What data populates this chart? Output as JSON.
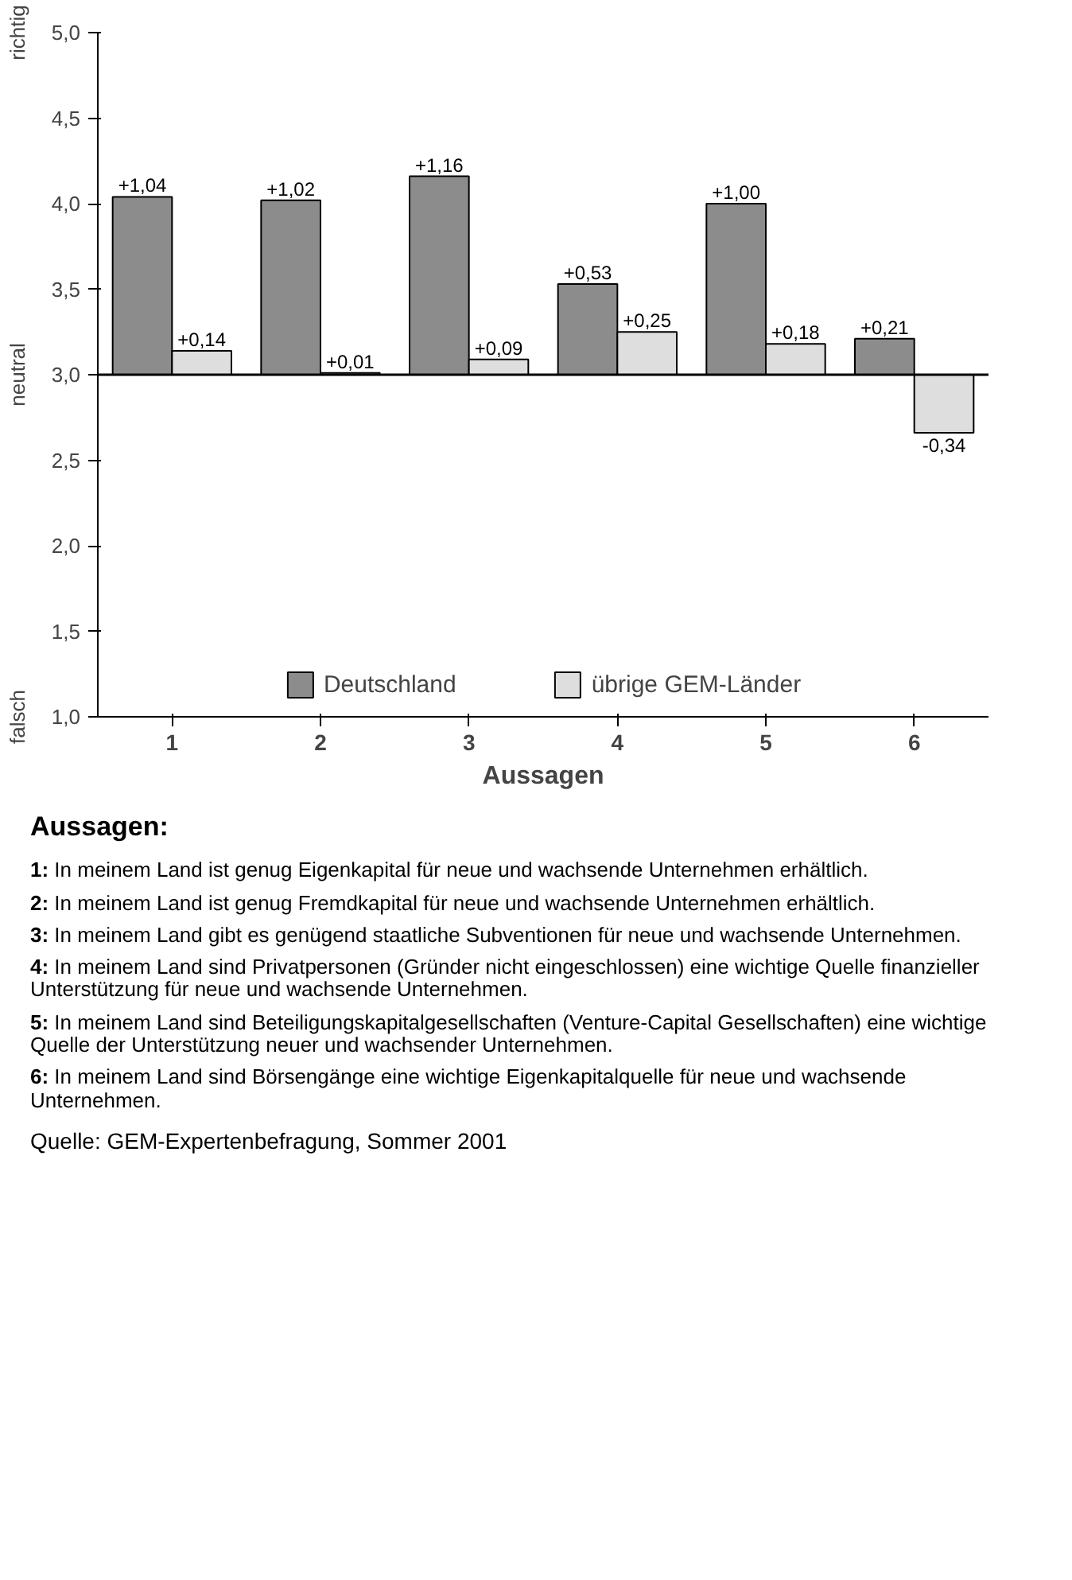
{
  "chart_data": {
    "type": "bar",
    "xlabel": "Aussagen",
    "categories": [
      "1",
      "2",
      "3",
      "4",
      "5",
      "6"
    ],
    "series": [
      {
        "name": "Deutschland",
        "color": "#8c8c8c",
        "base": [
          3,
          3,
          3,
          3,
          3,
          3
        ],
        "values": [
          1.04,
          1.02,
          1.16,
          0.53,
          1.0,
          0.21
        ],
        "value_labels": [
          "+1,04",
          "+1,02",
          "+1,16",
          "+0,53",
          "+1,00",
          "+0,21"
        ]
      },
      {
        "name": "übrige GEM-Länder",
        "color": "#dedede",
        "base": [
          3,
          3,
          3,
          3,
          3,
          3
        ],
        "values": [
          0.14,
          0.01,
          0.09,
          0.25,
          0.18,
          -0.34
        ],
        "value_labels": [
          "+0,14",
          "+0,01",
          "+0,09",
          "+0,25",
          "+0,18",
          "-0,34"
        ]
      }
    ],
    "ylim": [
      1,
      5
    ],
    "yticks": [
      {
        "value": 1,
        "label": "1,0"
      },
      {
        "value": 1.5,
        "label": "1,5"
      },
      {
        "value": 2,
        "label": "2,0"
      },
      {
        "value": 2.5,
        "label": "2,5"
      },
      {
        "value": 3,
        "label": "3,0"
      },
      {
        "value": 3.5,
        "label": "3,5"
      },
      {
        "value": 4,
        "label": "4,0"
      },
      {
        "value": 4.5,
        "label": "4,5"
      },
      {
        "value": 5,
        "label": "5,0"
      }
    ],
    "ref_lines": [
      {
        "axis": "y",
        "value": 3,
        "label": null
      }
    ],
    "grid": false,
    "legend": "bottom",
    "annotations": [
      "richtig",
      "neutral",
      "falsch",
      "Aussagen:",
      "1: In meinem Land ist genug Eigenkapital für neue und wachsende Unternehmen erhältlich.",
      "2: In meinem Land ist genug Fremdkapital für neue und wachsende Unternehmen erhältlich.",
      "3: In meinem Land gibt es genügend staatliche Subventionen für neue und wachsende Unternehmen.",
      "4: In meinem Land sind Privatpersonen (Gründer nicht eingeschlossen) eine wichtige Quelle finanzieller Unterstützung für neue und wachsende Unternehmen.",
      "5: In meinem Land sind Beteiligungskapitalgesellschaften (Venture-Capital Gesellschaften) eine wichtige Quelle der Unterstützung neuer und wachsender Unternehmen.",
      "6: In meinem Land sind Börsengänge eine wichtige Eigenkapitalquelle für neue und wachsende Unternehmen.",
      "Quelle: GEM-Expertenbefragung, Sommer 2001"
    ]
  }
}
